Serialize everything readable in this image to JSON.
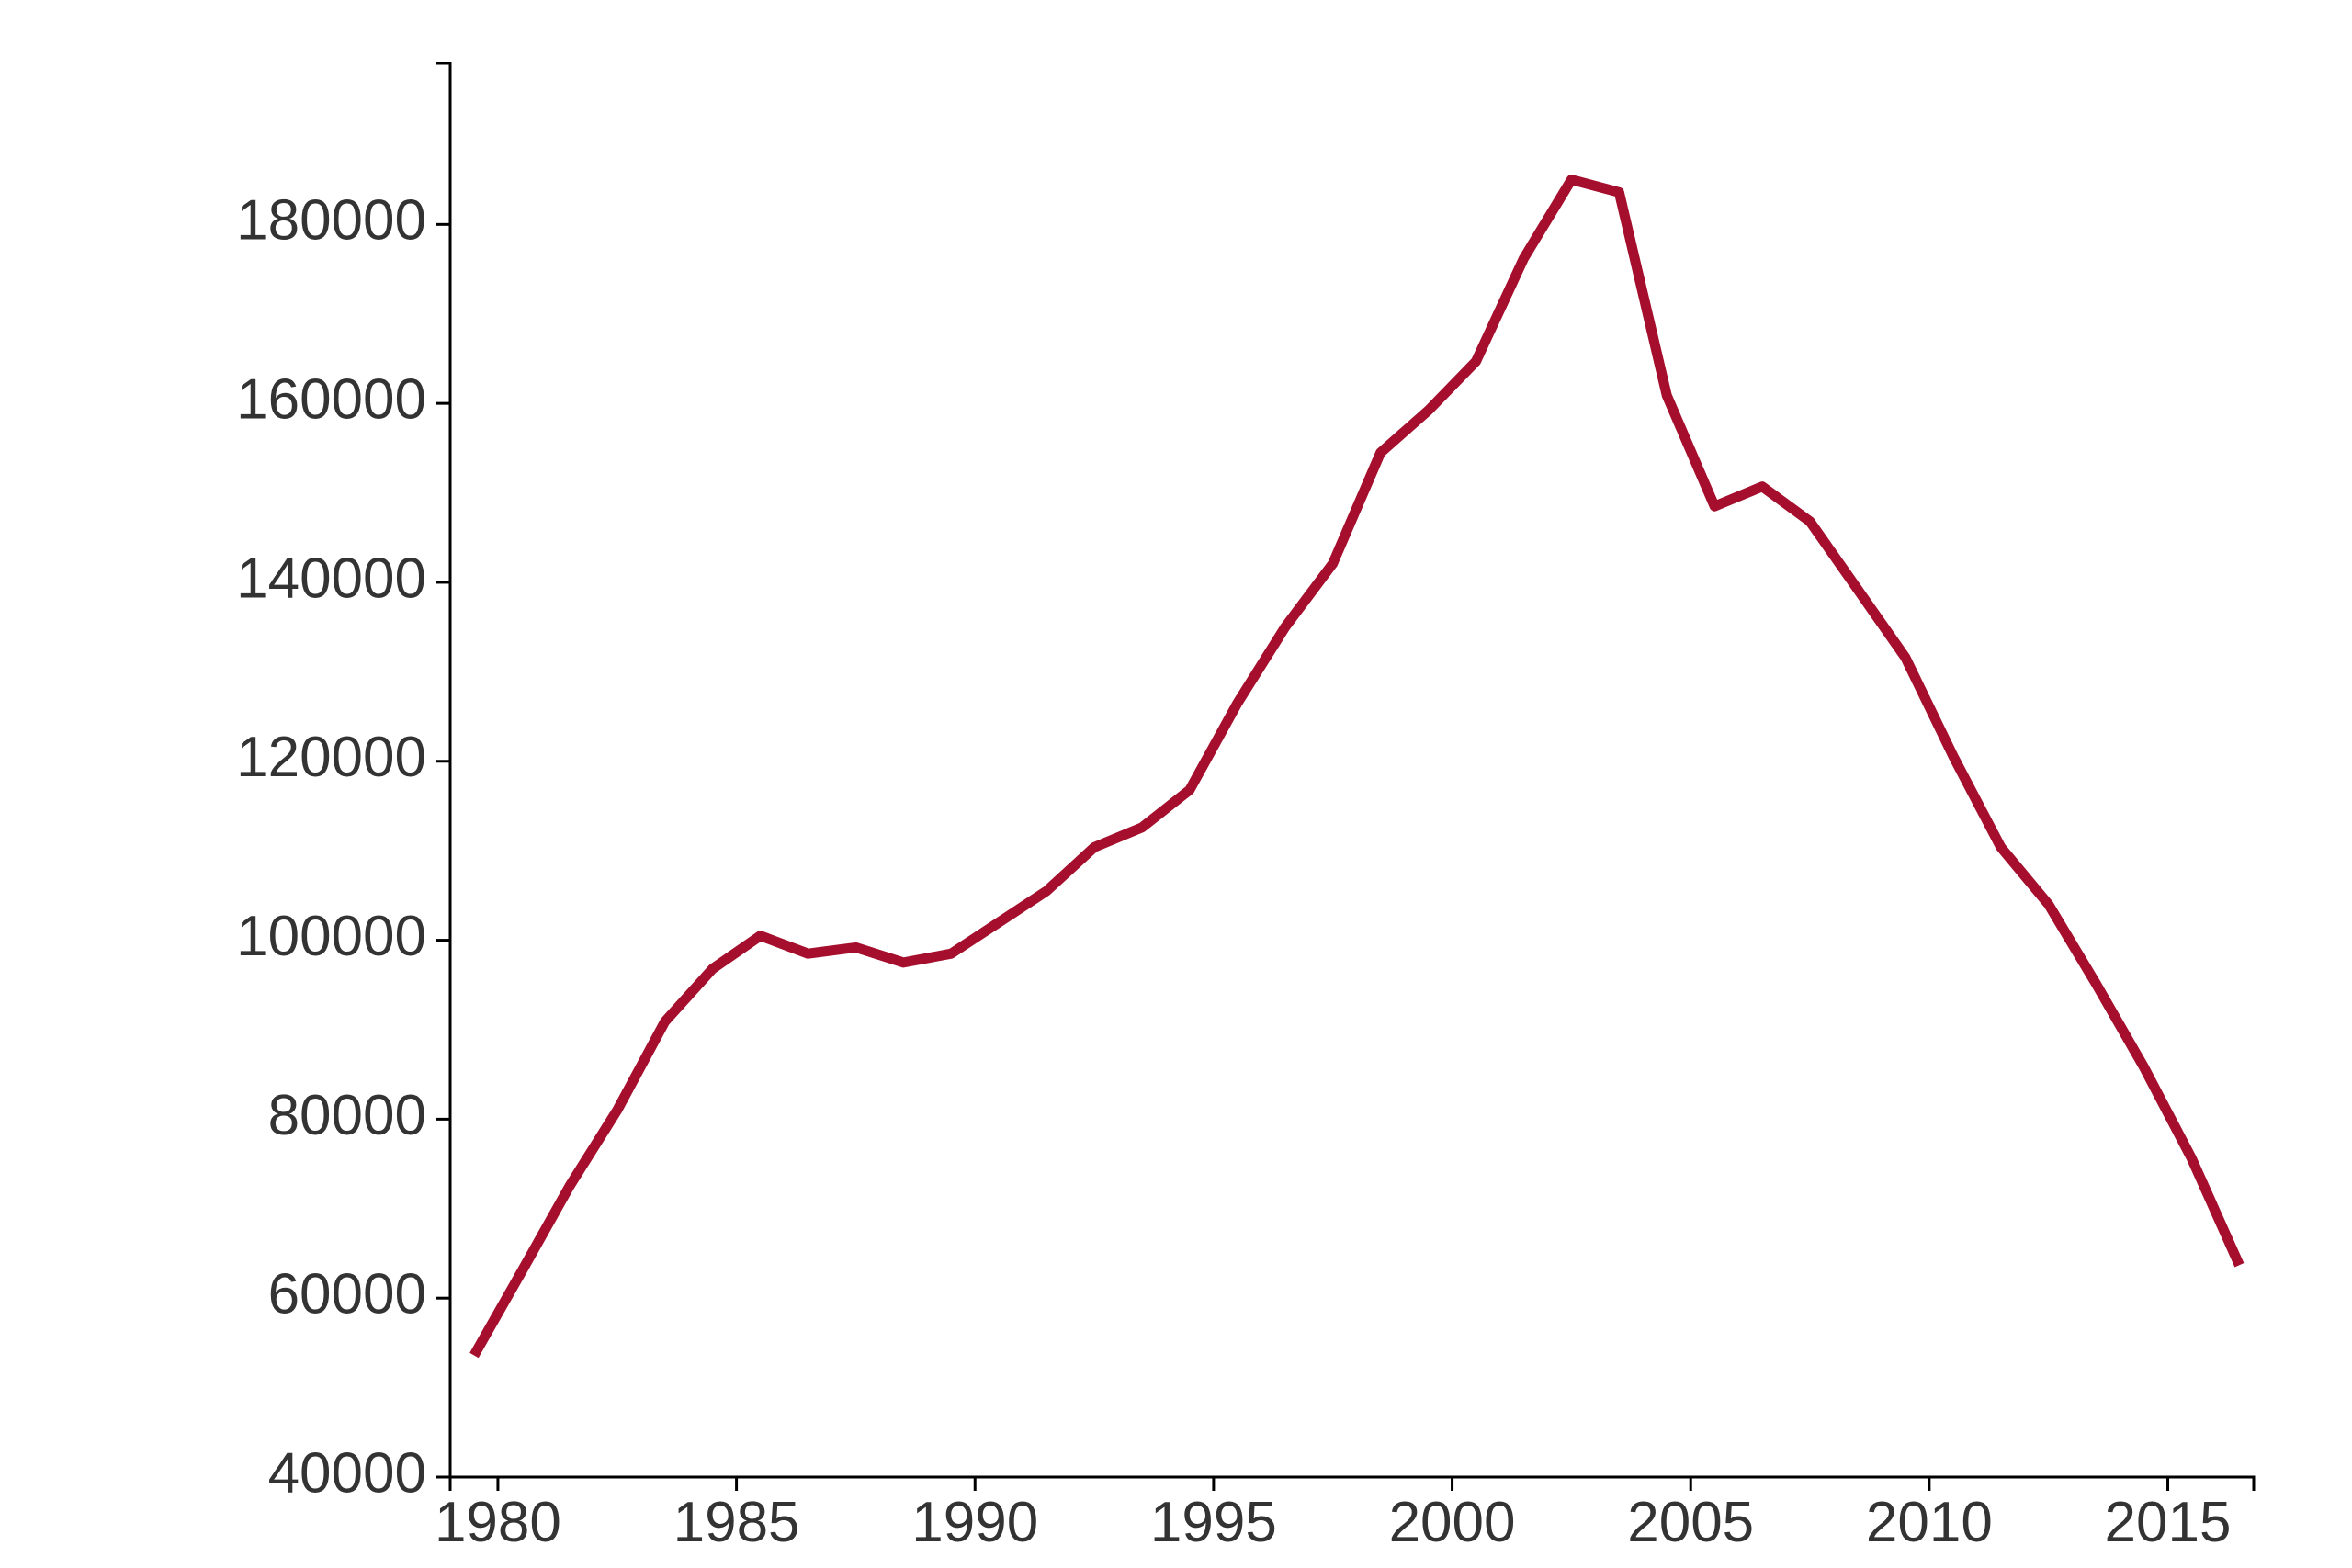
{
  "chart_data": {
    "type": "line",
    "x": [
      1979.5,
      1980.5,
      1981.5,
      1982.5,
      1983.5,
      1984.5,
      1985.5,
      1986.5,
      1987.5,
      1988.5,
      1989.5,
      1990.5,
      1991.5,
      1992.5,
      1993.5,
      1994.5,
      1995.5,
      1996.5,
      1997.5,
      1998.5,
      1999.5,
      2000.5,
      2001.5,
      2002.5,
      2003.5,
      2004.5,
      2005.5,
      2006.5,
      2007.5,
      2008.5,
      2009.5,
      2010.5,
      2011.5,
      2012.5,
      2013.5,
      2014.5,
      2015.5,
      2016.5
    ],
    "series": [
      {
        "color": "#a50f2d",
        "values": [
          53600,
          63000,
          72500,
          81000,
          90900,
          96800,
          100500,
          98500,
          99200,
          97500,
          98500,
          102000,
          105500,
          110400,
          112600,
          116800,
          126500,
          135000,
          142100,
          154500,
          159200,
          164700,
          176200,
          185000,
          183600,
          160900,
          148500,
          150700,
          146800,
          139200,
          131600,
          120600,
          110400,
          104000,
          95100,
          85800,
          75600,
          63700
        ]
      }
    ],
    "xlim": [
      1979,
      2016.8
    ],
    "xticks": [
      1980,
      1985,
      1990,
      1995,
      2000,
      2005,
      2010,
      2015
    ],
    "ylim": [
      40000,
      198000
    ],
    "yticks": [
      40000,
      60000,
      80000,
      100000,
      120000,
      140000,
      160000,
      180000
    ]
  }
}
